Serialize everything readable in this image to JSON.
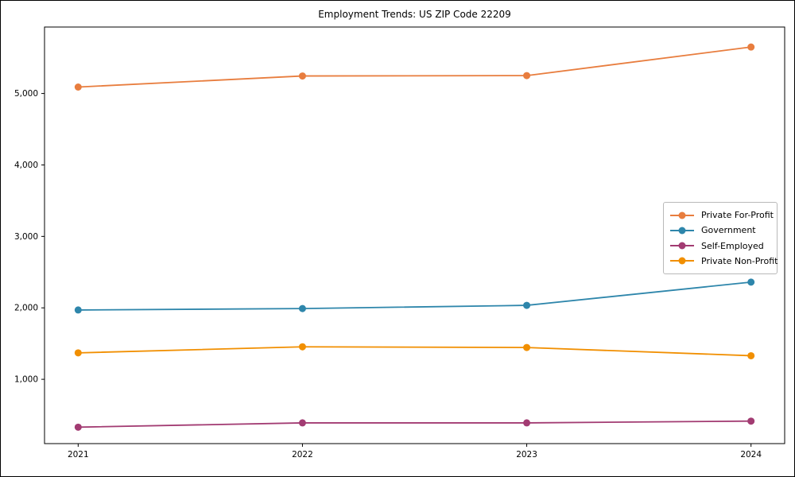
{
  "figure": {
    "title": "Employment Trends: US ZIP Code 22209"
  },
  "chart_data": {
    "type": "line",
    "title": "Employment Trends: US ZIP Code 22209",
    "categories": [
      "2021",
      "2022",
      "2023",
      "2024"
    ],
    "x_numeric": [
      2021,
      2022,
      2023,
      2024
    ],
    "series": [
      {
        "name": "Private For-Profit",
        "color": "#E87D3E",
        "values": [
          5090,
          5245,
          5250,
          5650
        ]
      },
      {
        "name": "Government",
        "color": "#2E86AB",
        "values": [
          1970,
          1990,
          2035,
          2360
        ]
      },
      {
        "name": "Self-Employed",
        "color": "#A23B72",
        "values": [
          330,
          390,
          390,
          415
        ]
      },
      {
        "name": "Private Non-Profit",
        "color": "#F18F01",
        "values": [
          1370,
          1455,
          1445,
          1330
        ]
      }
    ],
    "xlabel": "",
    "ylabel": "",
    "xlim": [
      2020.85,
      2024.15
    ],
    "ylim": [
      100,
      5930
    ],
    "yticks": [
      1000,
      2000,
      3000,
      4000,
      5000
    ],
    "ytick_labels": [
      "1,000",
      "2,000",
      "3,000",
      "4,000",
      "5,000"
    ],
    "xtick_labels": [
      "2021",
      "2022",
      "2023",
      "2024"
    ],
    "grid": false,
    "legend_position": "center right",
    "marker": "o",
    "axis_color": "#000000",
    "background_color": "#ffffff"
  }
}
